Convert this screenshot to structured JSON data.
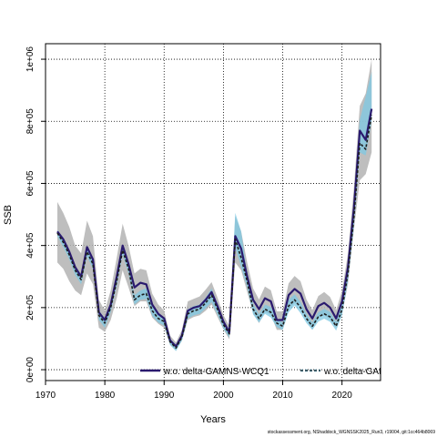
{
  "chart_data": {
    "type": "line",
    "title": "",
    "xlabel": "Years",
    "ylabel": "SSB",
    "xlim": [
      1970,
      2026.5
    ],
    "ylim": [
      -35000,
      1050000
    ],
    "x_ticks": [
      1970,
      1980,
      1990,
      2000,
      2010,
      2020
    ],
    "y_ticks": [
      0,
      200000,
      400000,
      600000,
      800000,
      1000000
    ],
    "y_tick_labels": [
      "0e+00",
      "2e+05",
      "4e+05",
      "6e+05",
      "8e+05",
      "1e+06"
    ],
    "grid": true,
    "legend_position": "bottom-right, inside plot",
    "series": [
      {
        "name": "w.o. delta-GAMNS-WCQ1",
        "color": "#2a1a6e",
        "line_style": "solid",
        "band_color": "#b3b3b3",
        "x": [
          1972,
          1973,
          1974,
          1975,
          1976,
          1977,
          1978,
          1979,
          1980,
          1981,
          1982,
          1983,
          1984,
          1985,
          1986,
          1987,
          1988,
          1989,
          1990,
          1991,
          1992,
          1993,
          1994,
          1995,
          1996,
          1997,
          1998,
          1999,
          2000,
          2001,
          2002,
          2003,
          2004,
          2005,
          2006,
          2007,
          2008,
          2009,
          2010,
          2011,
          2012,
          2013,
          2014,
          2015,
          2016,
          2017,
          2018,
          2019,
          2020,
          2021,
          2022,
          2023,
          2024,
          2025
        ],
        "values": [
          445000,
          420000,
          380000,
          330000,
          300000,
          395000,
          355000,
          185000,
          160000,
          210000,
          300000,
          400000,
          340000,
          265000,
          280000,
          275000,
          210000,
          180000,
          165000,
          95000,
          75000,
          110000,
          190000,
          200000,
          205000,
          225000,
          250000,
          205000,
          155000,
          120000,
          430000,
          390000,
          300000,
          225000,
          195000,
          230000,
          220000,
          160000,
          160000,
          240000,
          260000,
          245000,
          195000,
          165000,
          205000,
          215000,
          200000,
          165000,
          220000,
          330000,
          520000,
          770000,
          740000,
          840000
        ],
        "upper": [
          540000,
          505000,
          460000,
          400000,
          375000,
          480000,
          430000,
          225000,
          190000,
          255000,
          360000,
          470000,
          400000,
          310000,
          325000,
          320000,
          245000,
          210000,
          190000,
          110000,
          88000,
          128000,
          220000,
          228000,
          236000,
          258000,
          282000,
          232000,
          176000,
          140000,
          495000,
          445000,
          345000,
          262000,
          226000,
          268000,
          256000,
          188000,
          188000,
          278000,
          302000,
          285000,
          226000,
          192000,
          237000,
          250000,
          234000,
          192000,
          255000,
          375000,
          585000,
          850000,
          890000,
          1000000
        ],
        "lower": [
          345000,
          325000,
          285000,
          255000,
          240000,
          310000,
          275000,
          135000,
          122000,
          160000,
          230000,
          320000,
          265000,
          205000,
          220000,
          220000,
          168000,
          148000,
          135000,
          80000,
          62000,
          93000,
          160000,
          170000,
          175000,
          190000,
          210000,
          170000,
          130000,
          98000,
          345000,
          320000,
          250000,
          183000,
          150000,
          185000,
          178000,
          128000,
          128000,
          195000,
          215000,
          205000,
          160000,
          130000,
          168000,
          175000,
          163000,
          135000,
          180000,
          275000,
          450000,
          610000,
          630000,
          700000
        ]
      },
      {
        "name": "w.o. delta-GAI",
        "color": "#1c1c1c",
        "line_style": "dashed",
        "band_color": "#7ec8e3",
        "x": [
          1972,
          1973,
          1974,
          1975,
          1976,
          1977,
          1978,
          1979,
          1980,
          1981,
          1982,
          1983,
          1984,
          1985,
          1986,
          1987,
          1988,
          1989,
          1990,
          1991,
          1992,
          1993,
          1994,
          1995,
          1996,
          1997,
          1998,
          1999,
          2000,
          2001,
          2002,
          2003,
          2004,
          2005,
          2006,
          2007,
          2008,
          2009,
          2010,
          2011,
          2012,
          2013,
          2014,
          2015,
          2016,
          2017,
          2018,
          2019,
          2020,
          2021,
          2022,
          2023,
          2024,
          2025
        ],
        "values": [
          440000,
          410000,
          370000,
          320000,
          290000,
          380000,
          340000,
          175000,
          150000,
          200000,
          285000,
          385000,
          325000,
          225000,
          240000,
          245000,
          190000,
          165000,
          155000,
          90000,
          70000,
          105000,
          180000,
          190000,
          195000,
          215000,
          240000,
          195000,
          145000,
          115000,
          420000,
          360000,
          285000,
          195000,
          165000,
          195000,
          185000,
          150000,
          140000,
          205000,
          225000,
          200000,
          165000,
          140000,
          170000,
          180000,
          170000,
          140000,
          195000,
          310000,
          490000,
          730000,
          710000,
          820000
        ],
        "upper": [
          450000,
          425000,
          385000,
          335000,
          305000,
          395000,
          355000,
          190000,
          165000,
          215000,
          300000,
          400000,
          340000,
          240000,
          255000,
          262000,
          206000,
          178000,
          168000,
          100000,
          80000,
          116000,
          195000,
          205000,
          210000,
          232000,
          262000,
          212000,
          158000,
          126000,
          505000,
          445000,
          305000,
          212000,
          178000,
          210000,
          202000,
          163000,
          152000,
          225000,
          243000,
          218000,
          180000,
          152000,
          185000,
          196000,
          186000,
          154000,
          215000,
          345000,
          540000,
          805000,
          880000,
          960000
        ],
        "lower": [
          430000,
          395000,
          355000,
          305000,
          275000,
          365000,
          325000,
          160000,
          135000,
          185000,
          270000,
          370000,
          310000,
          210000,
          225000,
          228000,
          174000,
          152000,
          142000,
          80000,
          60000,
          94000,
          165000,
          175000,
          180000,
          198000,
          218000,
          178000,
          132000,
          104000,
          395000,
          330000,
          265000,
          178000,
          152000,
          180000,
          168000,
          137000,
          128000,
          185000,
          207000,
          182000,
          150000,
          128000,
          155000,
          164000,
          154000,
          126000,
          175000,
          285000,
          460000,
          700000,
          690000,
          800000
        ]
      }
    ]
  },
  "footer_text": "stockassessment.org, NShaddock_WGNSSK2025_Run3, r19004, git:1cc464b8069"
}
